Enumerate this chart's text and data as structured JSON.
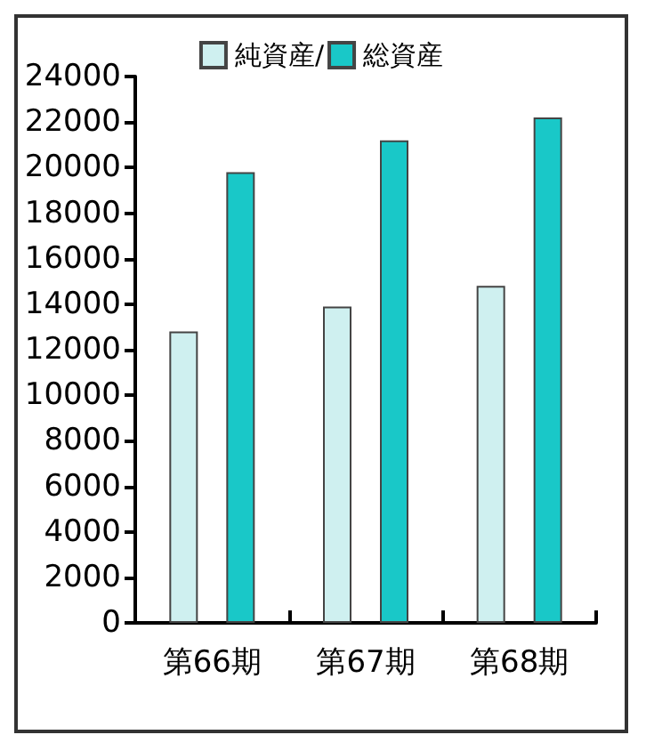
{
  "chart_data": {
    "type": "bar",
    "categories": [
      "第66期",
      "第67期",
      "第68期"
    ],
    "series": [
      {
        "name": "純資産/",
        "color": "#cff0f0",
        "values": [
          12800,
          13900,
          14800
        ]
      },
      {
        "name": "総資産",
        "color": "#19c8c8",
        "values": [
          19800,
          21200,
          22200
        ]
      }
    ],
    "ylim": [
      0,
      24000
    ],
    "yticks": [
      0,
      2000,
      4000,
      6000,
      8000,
      10000,
      12000,
      14000,
      16000,
      18000,
      20000,
      22000,
      24000
    ],
    "grid": false,
    "legend": "top"
  }
}
